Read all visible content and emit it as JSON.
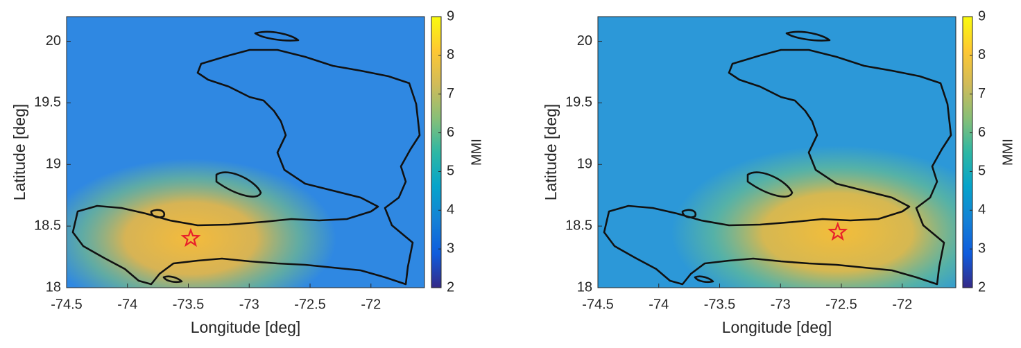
{
  "chart_data": [
    {
      "type": "heatmap",
      "xlabel": "Longitude [deg]",
      "ylabel": "Latitude [deg]",
      "xlim": [
        -74.5,
        -71.56
      ],
      "ylim": [
        18,
        20.2
      ],
      "xticks": [
        -74.5,
        -74,
        -73.5,
        -73,
        -72.5,
        -72
      ],
      "yticks": [
        18,
        18.5,
        19,
        19.5,
        20
      ],
      "clim": [
        2,
        9
      ],
      "cticks": [
        2,
        3,
        4,
        5,
        6,
        7,
        8,
        9
      ],
      "colorbar_label": "MMI",
      "colormap": [
        "#352a87",
        "#0f5cdd",
        "#1481d6",
        "#06a4ca",
        "#2eb7a4",
        "#87bf77",
        "#d1bb59",
        "#fec832",
        "#f9fb0e"
      ],
      "epicenter": {
        "x": -73.48,
        "y": 18.4,
        "color": "#e8202a"
      }
    },
    {
      "type": "heatmap",
      "xlabel": "Longitude [deg]",
      "ylabel": "Latitude [deg]",
      "xlim": [
        -74.5,
        -71.56
      ],
      "ylim": [
        18,
        20.2
      ],
      "xticks": [
        -74.5,
        -74,
        -73.5,
        -73,
        -72.5,
        -72
      ],
      "yticks": [
        18,
        18.5,
        19,
        19.5,
        20
      ],
      "clim": [
        2,
        9
      ],
      "cticks": [
        2,
        3,
        4,
        5,
        6,
        7,
        8,
        9
      ],
      "colorbar_label": "MMI",
      "colormap": [
        "#352a87",
        "#0f5cdd",
        "#1481d6",
        "#06a4ca",
        "#2eb7a4",
        "#87bf77",
        "#d1bb59",
        "#fec832",
        "#f9fb0e"
      ],
      "epicenter": {
        "x": -72.53,
        "y": 18.45,
        "color": "#e8202a"
      }
    }
  ]
}
